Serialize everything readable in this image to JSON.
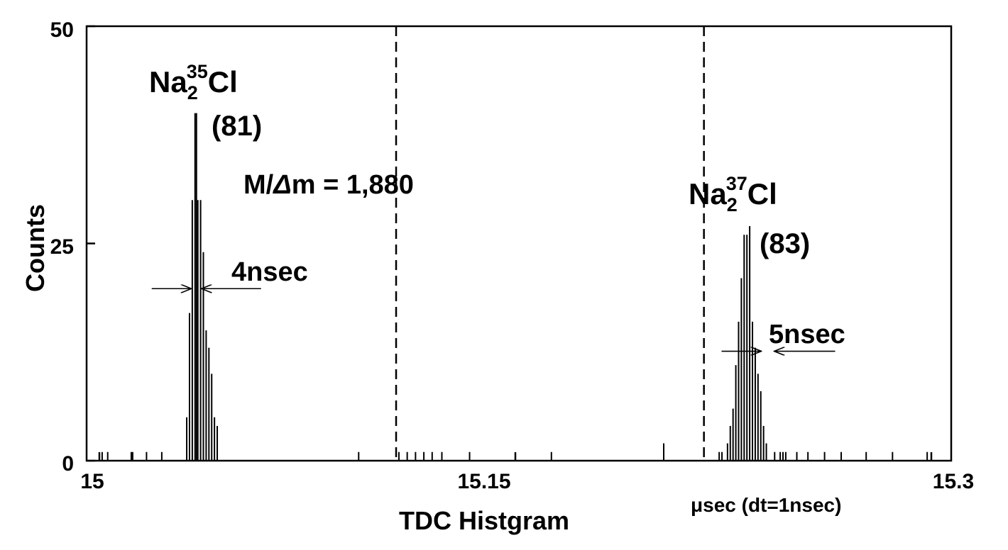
{
  "chart_data": {
    "type": "bar",
    "xlabel": "TDC Histgram",
    "ylabel": "Counts",
    "x_unit_label": "μsec (dt=1nsec)",
    "xlim": [
      15.0,
      15.3
    ],
    "ylim": [
      0,
      50
    ],
    "x_ticks": [
      "15",
      "15.15",
      "15.3"
    ],
    "x_tick_values": [
      15.0,
      15.15,
      15.3
    ],
    "y_ticks": [
      "0",
      "25",
      "50"
    ],
    "y_tick_values": [
      0,
      25,
      50
    ],
    "grid": false,
    "reference_lines": [
      15.107,
      15.218
    ],
    "peaks": [
      {
        "name_base": "Na",
        "name_sub": "2",
        "name_sup": "35",
        "name_tail": "Cl",
        "mass_label": "(81)",
        "width_label": "4nsec",
        "width_x": 15.035,
        "width_y": 19.8
      },
      {
        "name_base": "Na",
        "name_sub": "2",
        "name_sup": "37",
        "name_tail": "Cl",
        "mass_label": "(83)",
        "width_label": "5nsec",
        "width_x": 15.241,
        "width_y": 12.6
      }
    ],
    "resolution_label_pre": "M/",
    "resolution_label_delta": "Δ",
    "resolution_label_post": "m = 1,880",
    "x": [
      15.001,
      15.003,
      15.0115,
      15.012,
      15.017,
      15.0225,
      15.0315,
      15.0325,
      15.0335,
      15.0345,
      15.035,
      15.0355,
      15.0365,
      15.0375,
      15.0385,
      15.0395,
      15.0405,
      15.0415,
      15.0425,
      15.0935,
      15.108,
      15.111,
      15.114,
      15.117,
      15.12,
      15.1235,
      15.1335,
      15.163,
      15.2035,
      15.2235,
      15.2245,
      15.2265,
      15.2275,
      15.2285,
      15.2295,
      15.2305,
      15.2315,
      15.2325,
      15.2335,
      15.2345,
      15.2355,
      15.2365,
      15.2375,
      15.2385,
      15.2395,
      15.2405,
      15.2435,
      15.2455,
      15.2465,
      15.2475,
      15.2515,
      15.2555,
      15.2615,
      15.2675,
      15.2765,
      15.286,
      15.2985
    ],
    "values": [
      1,
      1,
      1,
      1,
      1,
      1,
      5,
      17,
      30,
      40,
      40,
      30,
      30,
      24,
      15,
      13,
      10,
      5,
      4,
      1,
      1,
      1,
      1,
      1,
      1,
      1,
      1,
      1,
      2,
      1,
      1,
      2,
      4,
      6,
      11,
      16,
      21,
      26,
      26,
      27,
      16,
      13,
      10,
      8,
      4,
      2,
      1,
      1,
      1,
      1,
      1,
      1,
      1,
      1,
      1,
      1,
      1
    ]
  }
}
